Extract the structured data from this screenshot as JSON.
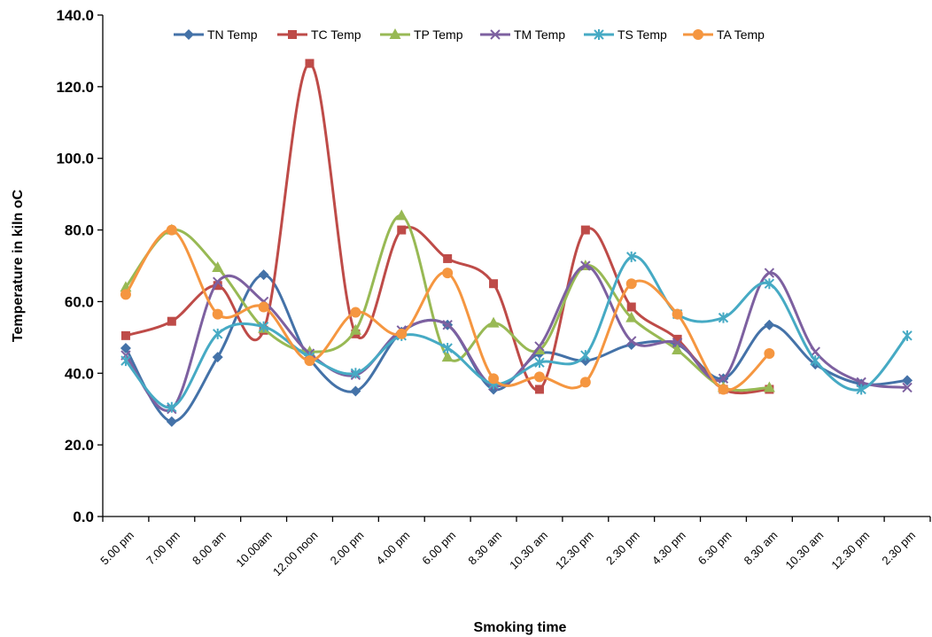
{
  "chart_data": {
    "type": "line",
    "smooth": true,
    "xlabel": "Smoking time",
    "ylabel": "Temperature in kiln oC",
    "ylim": [
      0,
      140
    ],
    "yticks": [
      "0.0",
      "20.0",
      "40.0",
      "60.0",
      "80.0",
      "100.0",
      "120.0",
      "140.0"
    ],
    "legend_position": "top",
    "grid": false,
    "categories": [
      "5.00 pm",
      "7.00 pm",
      "8.00 am",
      "10.00am",
      "12.00 noon",
      "2.00 pm",
      "4.00 pm",
      "6.00 pm",
      "8.30 am",
      "10.30 am",
      "12.30 pm",
      "2.30 pm",
      "4.30 pm",
      "6.30 pm",
      "8.30 am",
      "10.30 am",
      "12.30 pm",
      "2.30 pm"
    ],
    "series": [
      {
        "name": "TN Temp",
        "color": "#4472A8",
        "marker": "diamond",
        "values": [
          47,
          26.5,
          44.5,
          67.5,
          44,
          35,
          51.5,
          53.5,
          35.5,
          45.5,
          43.5,
          48,
          48,
          38.5,
          53.5,
          42.5,
          37,
          38
        ]
      },
      {
        "name": "TC Temp",
        "color": "#BE4B48",
        "marker": "square",
        "values": [
          50.5,
          54.5,
          64.5,
          52,
          126.5,
          51,
          80,
          72,
          65,
          35.5,
          80,
          58.5,
          49.5,
          35.5,
          35.5,
          null,
          null,
          null
        ]
      },
      {
        "name": "TP Temp",
        "color": "#98B954",
        "marker": "triangle",
        "values": [
          64,
          80,
          69.5,
          52.5,
          46,
          52,
          84,
          44.5,
          54,
          46.5,
          70,
          55.5,
          46.5,
          36,
          36,
          null,
          null,
          null
        ]
      },
      {
        "name": "TM Temp",
        "color": "#7D60A0",
        "marker": "x",
        "values": [
          45,
          30,
          65.5,
          60,
          45.5,
          39.5,
          52,
          53.5,
          36.5,
          47.5,
          70,
          49,
          48.5,
          38.5,
          68,
          46,
          37.5,
          36
        ]
      },
      {
        "name": "TS Temp",
        "color": "#46AAC4",
        "marker": "asterisk",
        "values": [
          43.5,
          30.5,
          51,
          53,
          44.5,
          40,
          50.5,
          47,
          37,
          43,
          45,
          72.5,
          56.5,
          55.5,
          65,
          43.5,
          35.5,
          50.5
        ]
      },
      {
        "name": "TA Temp",
        "color": "#F59640",
        "marker": "circle",
        "values": [
          62,
          80,
          56.5,
          58.5,
          43.5,
          57,
          51,
          68,
          38.5,
          39,
          37.5,
          65,
          56.5,
          35.5,
          45.5,
          null,
          null,
          null
        ]
      }
    ]
  }
}
